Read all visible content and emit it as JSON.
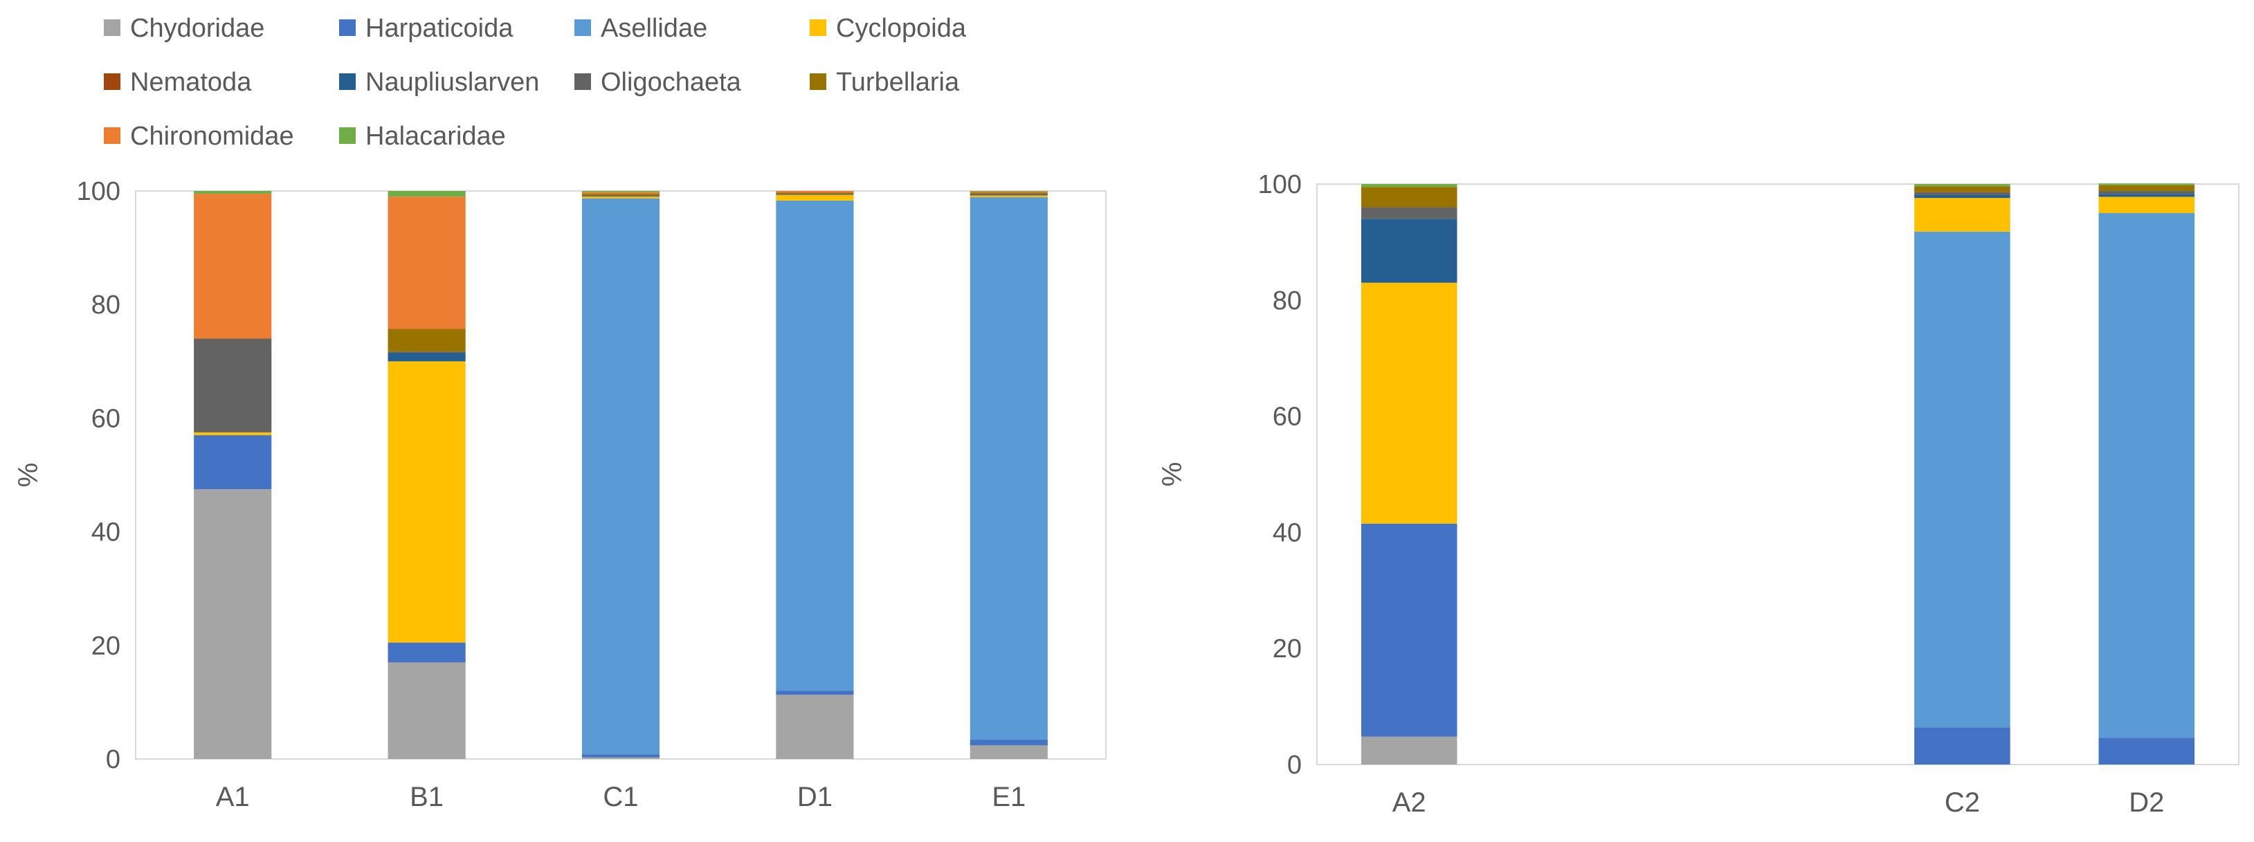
{
  "colors": {
    "Chydoridae": "#a5a5a5",
    "Harpaticoida": "#4472c4",
    "Asellidae": "#5b9bd5",
    "Cyclopoida": "#ffc000",
    "Nematoda": "#9e480e",
    "Naupliuslarven": "#255e91",
    "Oligochaeta": "#636363",
    "Turbellaria": "#997300",
    "Chironomidae": "#ed7d31",
    "Halacaridae": "#70ad47",
    "axis": "#d9d9d9",
    "text": "#595959"
  },
  "chart_data": [
    {
      "type": "bar",
      "stacked": true,
      "title": "",
      "xlabel": "",
      "ylabel": "%",
      "ylim": [
        0,
        100
      ],
      "yticks": [
        0,
        20,
        40,
        60,
        80,
        100
      ],
      "grid": false,
      "legend": "top",
      "categories": [
        "A1",
        "B1",
        "C1",
        "D1",
        "E1"
      ],
      "series": [
        {
          "name": "Chydoridae",
          "values": [
            47.5,
            17.0,
            0.3,
            11.3,
            2.4
          ]
        },
        {
          "name": "Harpaticoida",
          "values": [
            9.5,
            3.5,
            0.5,
            0.7,
            1.0
          ]
        },
        {
          "name": "Asellidae",
          "values": [
            0.0,
            0.0,
            97.9,
            86.3,
            95.5
          ]
        },
        {
          "name": "Cyclopoida",
          "values": [
            0.5,
            49.5,
            0.3,
            1.0,
            0.3
          ]
        },
        {
          "name": "Nematoda",
          "values": [
            0.0,
            0.0,
            0.0,
            0.0,
            0.0
          ]
        },
        {
          "name": "Naupliuslarven",
          "values": [
            0.0,
            1.5,
            0.0,
            0.0,
            0.0
          ]
        },
        {
          "name": "Oligochaeta",
          "values": [
            16.5,
            0.2,
            0.2,
            0.2,
            0.3
          ]
        },
        {
          "name": "Turbellaria",
          "values": [
            0.0,
            4.0,
            0.3,
            0.2,
            0.2
          ]
        },
        {
          "name": "Chironomidae",
          "values": [
            25.5,
            23.3,
            0.3,
            0.3,
            0.2
          ]
        },
        {
          "name": "Halacaridae",
          "values": [
            0.5,
            1.0,
            0.2,
            0.0,
            0.1
          ]
        }
      ]
    },
    {
      "type": "bar",
      "stacked": true,
      "title": "",
      "xlabel": "",
      "ylabel": "%",
      "ylim": [
        0,
        100
      ],
      "yticks": [
        0,
        20,
        40,
        60,
        80,
        100
      ],
      "grid": false,
      "categories": [
        "A2",
        "",
        "",
        "C2",
        "D2"
      ],
      "series": [
        {
          "name": "Chydoridae",
          "values": [
            4.8,
            0,
            0,
            0.0,
            0.0
          ]
        },
        {
          "name": "Harpaticoida",
          "values": [
            36.7,
            0,
            0,
            6.4,
            4.6
          ]
        },
        {
          "name": "Asellidae",
          "values": [
            0.0,
            0,
            0,
            85.4,
            90.4
          ]
        },
        {
          "name": "Cyclopoida",
          "values": [
            41.5,
            0,
            0,
            5.8,
            2.8
          ]
        },
        {
          "name": "Nematoda",
          "values": [
            0.0,
            0,
            0,
            0.0,
            0.0
          ]
        },
        {
          "name": "Naupliuslarven",
          "values": [
            11.0,
            0,
            0,
            0.5,
            0.5
          ]
        },
        {
          "name": "Oligochaeta",
          "values": [
            2.0,
            0,
            0,
            0.5,
            0.5
          ]
        },
        {
          "name": "Turbellaria",
          "values": [
            3.5,
            0,
            0,
            1.0,
            1.0
          ]
        },
        {
          "name": "Chironomidae",
          "values": [
            0.0,
            0,
            0,
            0.0,
            0.0
          ]
        },
        {
          "name": "Halacaridae",
          "values": [
            0.5,
            0,
            0,
            0.4,
            0.3
          ]
        }
      ]
    }
  ]
}
